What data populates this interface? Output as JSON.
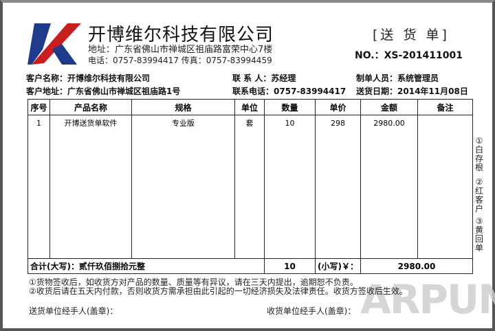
{
  "header": {
    "company": "开博维尔科技有限公司",
    "address": "地址：广东省佛山市禅城区祖庙路富荣中心7楼",
    "phone": "电话：0757-83994417 传真：0757-83994459",
    "doc_title": "[送 货 单]",
    "doc_no": "NO.：XS-201411001",
    "logo_colors": [
      "#1e3a8a",
      "#c81e1e"
    ]
  },
  "info": {
    "customer_name_label": "客户名称：",
    "customer_name": "开博维尔科技有限公司",
    "contact_label": "联 系 人：",
    "contact": "苏经理",
    "creator_label": "制单人员：",
    "creator": "系统管理员",
    "customer_addr_label": "客户地址：",
    "customer_addr": "广东省佛山市禅城区祖庙路1号",
    "contact_phone_label": "联系电话：",
    "contact_phone": "0757-83994417",
    "date_label": "送货日期：",
    "date": "2014年11月08日"
  },
  "table": {
    "headers": [
      "序号",
      "产品名称",
      "规格",
      "单位",
      "数量",
      "单价",
      "金额",
      "备注"
    ],
    "rows": [
      [
        "1",
        "开博送货单软件",
        "专业版",
        "套",
        "10",
        "298",
        "2980.00",
        ""
      ]
    ],
    "total_label": "合计(大写)：贰仟玖佰捌拾元整",
    "total_qty": "10",
    "small_label": "(小写)￥：",
    "total_amount": "2980.00"
  },
  "notes": [
    "①货物签收后，如收货方对产品的数量、质量等有异议，请在三天内提出，逾期恕不负责。",
    "②收货后请在五天内付款，否则收货方需承担由此引起的一切经济损失及法律责任。收货方签收后生效。"
  ],
  "side": [
    "①白存根",
    "②红客户",
    "③黄回单"
  ],
  "sign": {
    "sender": "送货单位经手人(盖章)：",
    "receiver": "收货单位经手人(盖章)："
  },
  "watermark": "ARPUN"
}
